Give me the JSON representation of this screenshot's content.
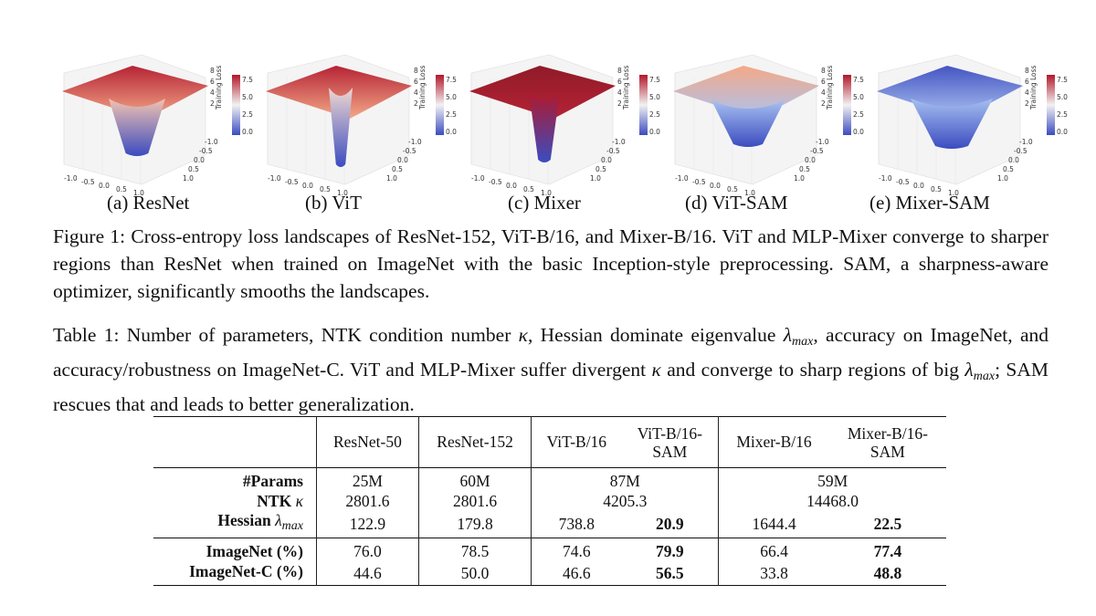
{
  "panels": [
    {
      "id": "a",
      "label": "(a) ResNet",
      "style": "bowl"
    },
    {
      "id": "b",
      "label": "(b) ViT",
      "style": "spike"
    },
    {
      "id": "c",
      "label": "(c) Mixer",
      "style": "deep"
    },
    {
      "id": "d",
      "label": "(d) ViT-SAM",
      "style": "saddle"
    },
    {
      "id": "e",
      "label": "(e) Mixer-SAM",
      "style": "smooth"
    }
  ],
  "surface_axes": {
    "x_ticks": [
      "-1.0",
      "-0.5",
      "0.0",
      "0.5",
      "1.0"
    ],
    "y_ticks": [
      "1.0",
      "0.5",
      "0.0",
      "-0.5",
      "-1.0"
    ],
    "z_ticks": [
      "8",
      "6",
      "4",
      "2"
    ],
    "z_label": "Training Loss",
    "colorbar_ticks": [
      "7.5",
      "5.0",
      "2.5",
      "0.0"
    ],
    "colors": {
      "high": "#b2182b",
      "mid": "#f4a582",
      "low": "#3b4cc0",
      "lowmid": "#a7c0f0"
    }
  },
  "figure_caption": {
    "prefix": "Figure 1:",
    "text": "Cross-entropy loss landscapes of ResNet-152, ViT-B/16, and Mixer-B/16. ViT and MLP-Mixer converge to sharper regions than ResNet when trained on ImageNet with the basic Inception-style preprocessing. SAM, a sharpness-aware optimizer, significantly smooths the landscapes."
  },
  "table_caption": {
    "prefix": "Table 1:",
    "part1": "Number of parameters, NTK condition number",
    "kappa": "κ",
    "part2": ", Hessian dominate eigenvalue",
    "lambda": "λ",
    "max": "max",
    "part3": ", accuracy on ImageNet, and accuracy/robustness on ImageNet-C. ViT and MLP-Mixer suffer divergent",
    "part4": "and converge to sharp regions of big",
    "part5": "; SAM rescues that and leads to better generalization."
  },
  "table": {
    "headers": [
      "ResNet-50",
      "ResNet-152",
      "ViT-B/16",
      "ViT-B/16-",
      "SAM",
      "Mixer-B/16",
      "Mixer-B/16-",
      "SAM"
    ],
    "rows": {
      "params": {
        "label": "#Params",
        "resnet50": "25M",
        "resnet152": "60M",
        "vit": "87M",
        "mixer": "59M"
      },
      "ntk": {
        "label": "NTK",
        "kappa": "κ",
        "resnet50": "2801.6",
        "resnet152": "2801.6",
        "vit": "4205.3",
        "mixer": "14468.0"
      },
      "hessian": {
        "label": "Hessian",
        "lambda": "λ",
        "max": "max",
        "resnet50": "122.9",
        "resnet152": "179.8",
        "vit": "738.8",
        "vit_sam": "20.9",
        "mixer": "1644.4",
        "mixer_sam": "22.5"
      },
      "imagenet": {
        "label": "ImageNet (%)",
        "resnet50": "76.0",
        "resnet152": "78.5",
        "vit": "74.6",
        "vit_sam": "79.9",
        "mixer": "66.4",
        "mixer_sam": "77.4"
      },
      "imagenet_c": {
        "label": "ImageNet-C (%)",
        "resnet50": "44.6",
        "resnet152": "50.0",
        "vit": "46.6",
        "vit_sam": "56.5",
        "mixer": "33.8",
        "mixer_sam": "48.8"
      }
    }
  }
}
